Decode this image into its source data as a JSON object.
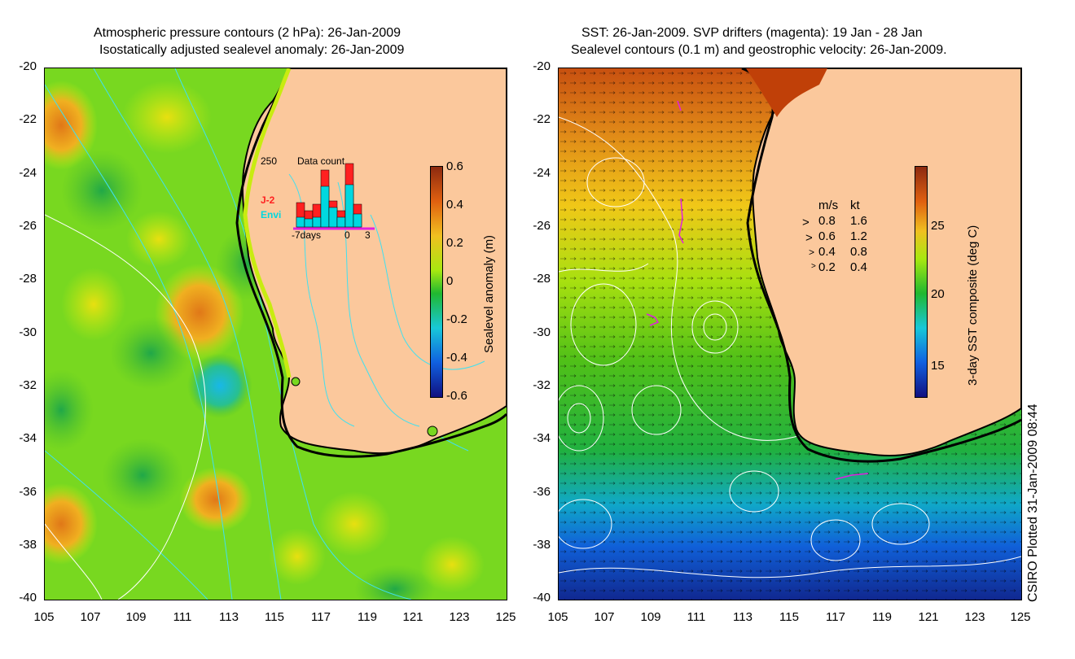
{
  "left_panel": {
    "title_line1": "Atmospheric pressure contours (2 hPa): 26-Jan-2009",
    "title_line2": "Isostatically adjusted sealevel anomaly: 26-Jan-2009",
    "colorbar_label": "Sealevel anomaly (m)",
    "colorbar_ticks": [
      "0.6",
      "0.4",
      "0.2",
      "0",
      "-0.2",
      "-0.4",
      "-0.6"
    ],
    "inset": {
      "title": "Data count",
      "ymax_label": "250",
      "series_a": "J-2",
      "series_b": "Envi",
      "series_a_color": "#ff2020",
      "series_b_color": "#00d8e0",
      "x_labels": [
        "-7days",
        "0",
        "3"
      ]
    }
  },
  "right_panel": {
    "title_line1": "SST: 26-Jan-2009. SVP drifters (magenta): 19 Jan - 28 Jan",
    "title_line2": "Sealevel contours (0.1 m) and geostrophic velocity: 26-Jan-2009.",
    "colorbar_label": "3-day SST composite (deg C)",
    "colorbar_ticks": [
      "25",
      "20",
      "15"
    ],
    "velocity_legend": {
      "header_ms": "m/s",
      "header_kt": "kt",
      "rows": [
        {
          "ms": "0.8",
          "kt": "1.6"
        },
        {
          "ms": "0.6",
          "kt": "1.2"
        },
        {
          "ms": "0.4",
          "kt": "0.8"
        },
        {
          "ms": "0.2",
          "kt": "0.4"
        }
      ]
    }
  },
  "axes": {
    "y_ticks": [
      "-20",
      "-22",
      "-24",
      "-26",
      "-28",
      "-30",
      "-32",
      "-34",
      "-36",
      "-38",
      "-40"
    ],
    "x_ticks": [
      "105",
      "107",
      "109",
      "111",
      "113",
      "115",
      "117",
      "119",
      "121",
      "123",
      "125"
    ]
  },
  "credit": "CSIRO Plotted 31-Jan-2009 08:44",
  "colors": {
    "land": "#fbc89c",
    "sla_green": "#7fdc1e",
    "sla_yellow": "#c8ec10",
    "sla_orange": "#f0a020",
    "sla_blue": "#18c8d8",
    "sst_warm": "#d06010",
    "sst_green": "#50c818",
    "sst_blue": "#1040d0",
    "contour_cyan": "#40e0f0",
    "contour_white": "#ffffff",
    "drifter_magenta": "#e020e0"
  }
}
